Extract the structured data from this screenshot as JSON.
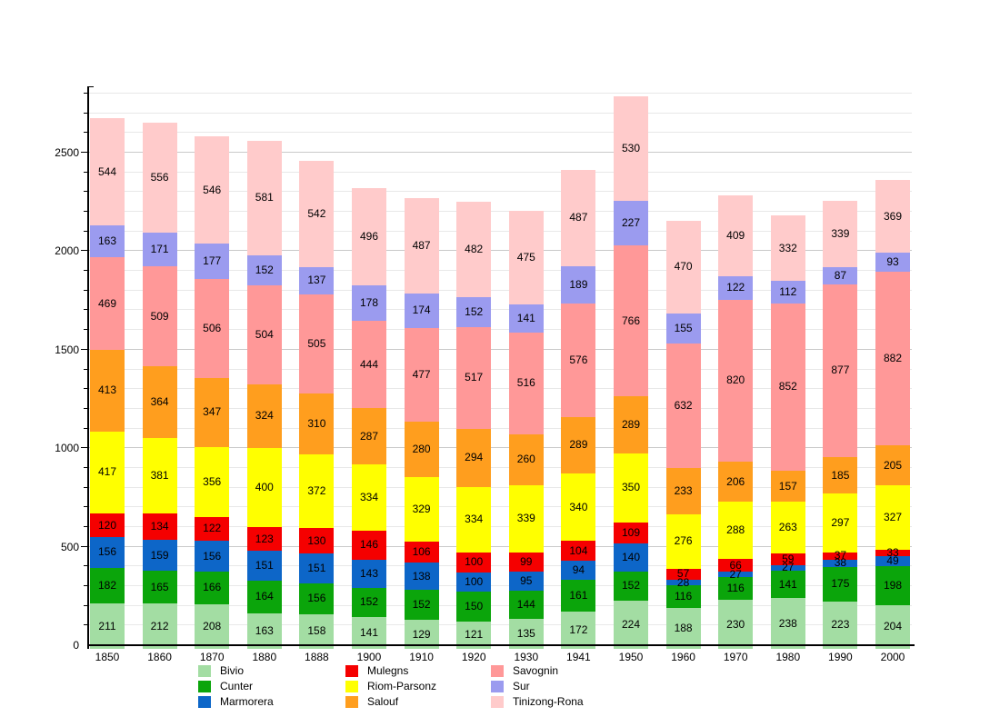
{
  "chart_data": {
    "type": "bar",
    "stacked": true,
    "title": "",
    "xlabel": "",
    "ylabel": "",
    "categories": [
      "1850",
      "1860",
      "1870",
      "1880",
      "1888",
      "1900",
      "1910",
      "1920",
      "1930",
      "1941",
      "1950",
      "1960",
      "1970",
      "1980",
      "1990",
      "2000"
    ],
    "series": [
      {
        "name": "Bivio",
        "color": "#A3DDA3",
        "values": [
          211,
          212,
          208,
          163,
          158,
          141,
          129,
          121,
          135,
          172,
          224,
          188,
          230,
          238,
          223,
          204
        ]
      },
      {
        "name": "Cunter",
        "color": "#0BA50B",
        "values": [
          182,
          165,
          166,
          164,
          156,
          152,
          152,
          150,
          144,
          161,
          152,
          116,
          116,
          141,
          175,
          198
        ]
      },
      {
        "name": "Marmorera",
        "color": "#0D66C8",
        "values": [
          156,
          159,
          156,
          151,
          151,
          143,
          138,
          100,
          95,
          94,
          140,
          28,
          27,
          27,
          38,
          49
        ]
      },
      {
        "name": "Mulegns",
        "color": "#F50000",
        "values": [
          120,
          134,
          122,
          123,
          130,
          146,
          106,
          100,
          99,
          104,
          109,
          57,
          66,
          59,
          37,
          33
        ]
      },
      {
        "name": "Riom-Parsonz",
        "color": "#FFFF00",
        "values": [
          417,
          381,
          356,
          400,
          372,
          334,
          329,
          334,
          339,
          340,
          350,
          276,
          288,
          263,
          297,
          327
        ]
      },
      {
        "name": "Salouf",
        "color": "#FF9E1E",
        "values": [
          413,
          364,
          347,
          324,
          310,
          287,
          280,
          294,
          260,
          289,
          289,
          233,
          206,
          157,
          185,
          205
        ]
      },
      {
        "name": "Savognin",
        "color": "#FF9898",
        "values": [
          469,
          509,
          506,
          504,
          505,
          444,
          477,
          517,
          516,
          576,
          766,
          632,
          820,
          852,
          877,
          882
        ]
      },
      {
        "name": "Sur",
        "color": "#9B9BEF",
        "values": [
          163,
          171,
          177,
          152,
          137,
          178,
          174,
          152,
          141,
          189,
          227,
          155,
          122,
          112,
          87,
          93
        ]
      },
      {
        "name": "Tinizong-Rona",
        "color": "#FFCBCB",
        "values": [
          544,
          556,
          546,
          581,
          542,
          496,
          487,
          482,
          475,
          487,
          530,
          470,
          409,
          332,
          339,
          369
        ]
      }
    ],
    "ylim": [
      0,
      2837
    ],
    "yticks": [
      0,
      500,
      1000,
      1500,
      2000,
      2500
    ],
    "minor_grid_step": 100,
    "grid": true,
    "legend_position": "bottom",
    "legend_columns": [
      [
        "Bivio",
        "Cunter",
        "Marmorera"
      ],
      [
        "Mulegns",
        "Riom-Parsonz",
        "Salouf"
      ],
      [
        "Savognin",
        "Sur",
        "Tinizong-Rona"
      ]
    ]
  },
  "style_colors": {
    "background": "#ffffff",
    "axis": "#000000",
    "grid_minor": "#e8e8e8",
    "grid_major": "#c9c9c9",
    "text": "#000000"
  }
}
